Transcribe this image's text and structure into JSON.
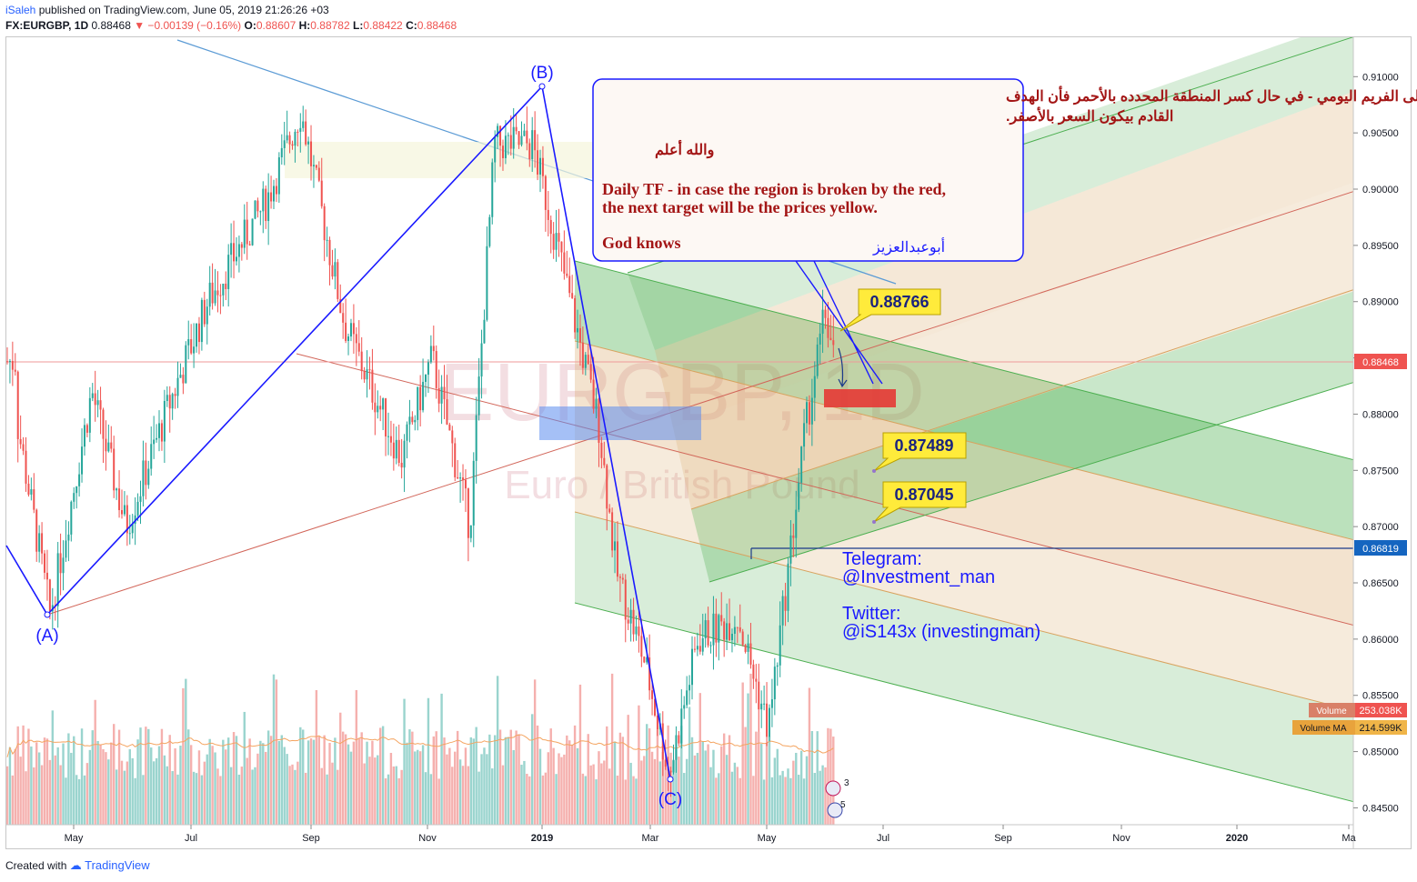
{
  "header": {
    "author": "iSaleh",
    "published": "published on TradingView.com, June 05, 2019 21:26:26 +03",
    "symbol": "FX:EURGBP, 1D",
    "last": "0.88468",
    "change": "▼ −0.00139 (−0.16%)",
    "ohlc_open_label": "O:",
    "ohlc_open": "0.88607",
    "ohlc_high_label": "H:",
    "ohlc_high": "0.88782",
    "ohlc_low_label": "L:",
    "ohlc_low": "0.88422",
    "ohlc_close_label": "C:",
    "ohlc_close": "0.88468"
  },
  "footer": {
    "created_with": "Created with",
    "brand": "TradingView"
  },
  "watermark": {
    "symbol": "EURGBP, 1D",
    "name": "Euro / British Pound"
  },
  "colors": {
    "up": "#26a69a",
    "down": "#ef5350",
    "wave": "#1a1aff",
    "pitchfork_green": "#4caf50",
    "pitchfork_tan": "#d8a35f"
  },
  "chart_data": {
    "type": "candlestick",
    "symbol": "FX:EURGBP",
    "timeframe": "1D",
    "x_tick_labels": [
      "May",
      "Jul",
      "Sep",
      "Nov",
      "2019",
      "Mar",
      "May",
      "Jul",
      "Sep",
      "Nov",
      "2020",
      "Ma"
    ],
    "y_ticks": [
      "0.91000",
      "0.90500",
      "0.90000",
      "0.89500",
      "0.89000",
      "0.88500",
      "0.88000",
      "0.87500",
      "0.87000",
      "0.86500",
      "0.86000",
      "0.85500",
      "0.85000",
      "0.84500"
    ],
    "ylim": [
      0.8435,
      0.9135
    ],
    "price_path": [
      [
        "2018-04-01",
        0.879
      ],
      [
        "2018-04-18",
        0.8622
      ],
      [
        "2018-05-10",
        0.882
      ],
      [
        "2018-05-28",
        0.87
      ],
      [
        "2018-06-20",
        0.881
      ],
      [
        "2018-07-10",
        0.89
      ],
      [
        "2018-08-10",
        0.899
      ],
      [
        "2018-08-28",
        0.907
      ],
      [
        "2018-09-20",
        0.888
      ],
      [
        "2018-10-20",
        0.876
      ],
      [
        "2018-11-05",
        0.885
      ],
      [
        "2018-11-25",
        0.87
      ],
      [
        "2018-12-08",
        0.904
      ],
      [
        "2018-12-28",
        0.904
      ],
      [
        "2019-01-10",
        0.895
      ],
      [
        "2019-02-01",
        0.879
      ],
      [
        "2019-02-10",
        0.866
      ],
      [
        "2019-02-25",
        0.858
      ],
      [
        "2019-03-10",
        0.848
      ],
      [
        "2019-03-25",
        0.86
      ],
      [
        "2019-04-15",
        0.862
      ],
      [
        "2019-05-01",
        0.852
      ],
      [
        "2019-05-10",
        0.864
      ],
      [
        "2019-05-20",
        0.878
      ],
      [
        "2019-05-31",
        0.889
      ],
      [
        "2019-06-05",
        0.8847
      ]
    ],
    "wave_points": [
      {
        "label": "(A)",
        "date": "2018-04-17",
        "price": 0.862
      },
      {
        "label": "(B)",
        "date": "2019-01-02",
        "price": 0.9093
      },
      {
        "label": "(C)",
        "date": "2019-03-11",
        "price": 0.8474
      }
    ],
    "last_price": "0.88468",
    "line_level": "0.86819",
    "targets": [
      "0.88766",
      "0.87489",
      "0.87045"
    ],
    "volume_label": "Volume",
    "volume_value": "253.038K",
    "volume_ma_label": "Volume MA",
    "volume_ma_value": "214.599K",
    "event_badges": [
      "3",
      "5"
    ]
  },
  "annotation": {
    "arabic_1": "على الفريم اليومي - في حال كسر المنطقة المحدده بالأحمر فأن الهدف",
    "arabic_2": "القادم بيكون السعر بالأصفر.",
    "arabic_3": "والله أعلم",
    "english_1": "Daily TF - in case the region is broken by the red,",
    "english_2": "the next target will be the prices yellow.",
    "english_3": "God knows",
    "signature": "أبوعبدالعزيز"
  },
  "contact": {
    "telegram_label": "Telegram:",
    "telegram": "@Investment_man",
    "twitter_label": "Twitter:",
    "twitter": "@iS143x (investingman)"
  }
}
